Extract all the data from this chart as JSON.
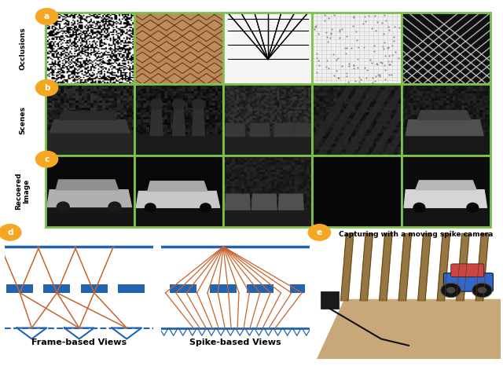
{
  "bg_color": "#ffffff",
  "green_border": "#7dc14b",
  "orange_label_bg": "#f5a623",
  "blue_line_color": "#2364b0",
  "orange_line_color": "#c8642b",
  "label_a": "a",
  "label_b": "b",
  "label_c": "c",
  "label_d": "d",
  "label_e": "e",
  "row_labels": [
    "Occlusions",
    "Scenes",
    "Recoered\nImage"
  ],
  "bottom_left_label": "Frame-based Views",
  "bottom_right_label": "Spike-based Views",
  "caption_e": "Capturing with a moving spike camera"
}
